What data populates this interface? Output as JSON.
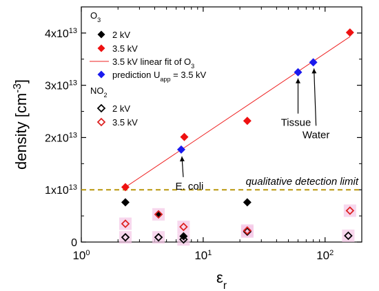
{
  "chart_data": {
    "type": "scatter",
    "x_scale": "log",
    "xlim": [
      1,
      200
    ],
    "ylim": [
      0,
      45000000000000.0
    ],
    "xlabel": "ε",
    "xlabel_sub": "r",
    "ylabel": "density [cm",
    "ylabel_sup": "-3",
    "ylabel_end": "]",
    "x_ticks": [
      {
        "value": 1,
        "base": "10",
        "exp": "0"
      },
      {
        "value": 10,
        "base": "10",
        "exp": "1"
      },
      {
        "value": 100,
        "base": "10",
        "exp": "2"
      }
    ],
    "y_ticks": [
      {
        "value": 0,
        "label": "0",
        "exp": ""
      },
      {
        "value": 10000000000000.0,
        "label": "1x10",
        "exp": "13"
      },
      {
        "value": 20000000000000.0,
        "label": "2x10",
        "exp": "13"
      },
      {
        "value": 30000000000000.0,
        "label": "3x10",
        "exp": "13"
      },
      {
        "value": 40000000000000.0,
        "label": "4x10",
        "exp": "13"
      }
    ],
    "legend": {
      "placement": "top-left",
      "o3_heading": "O",
      "o3_heading_sub": "3",
      "no2_heading": "NO",
      "no2_heading_sub": "2",
      "o3_2kv": "2 kV",
      "o3_35kv": "3.5 kV",
      "fit": "3.5 kV linear fit of O",
      "fit_sub": "3",
      "prediction": "prediction U",
      "prediction_sub": "app",
      "prediction_end": " = 3.5 kV",
      "no2_2kv": "2 kV",
      "no2_35kv": "3.5 kV"
    },
    "colors": {
      "o3_2kv": "#000000",
      "o3_35kv": "#ee1111",
      "fit": "#ee2222",
      "prediction": "#1a1aee",
      "no2_2kv": "#000000",
      "no2_35kv": "#dd2222",
      "no2_halo": "#f4c6e6",
      "detection_limit": "#b8960a"
    },
    "series": [
      {
        "name": "O3 2 kV",
        "marker": "filled-diamond",
        "points": [
          [
            2.3,
            7600000000000.0
          ],
          [
            4.3,
            5300000000000.0
          ],
          [
            6.9,
            1100000000000.0
          ],
          [
            23,
            7600000000000.0
          ]
        ]
      },
      {
        "name": "O3 3.5 kV",
        "marker": "filled-diamond",
        "points": [
          [
            2.3,
            10500000000000.0
          ],
          [
            7.0,
            20100000000000.0
          ],
          [
            23,
            23200000000000.0
          ],
          [
            160,
            40100000000000.0
          ]
        ]
      },
      {
        "name": "prediction 3.5 kV",
        "marker": "filled-diamond",
        "points": [
          [
            6.6,
            17700000000000.0
          ],
          [
            60,
            32500000000000.0
          ],
          [
            80,
            34400000000000.0
          ]
        ]
      },
      {
        "name": "NO2 2 kV",
        "marker": "open-diamond",
        "points": [
          [
            2.3,
            900000000000.0
          ],
          [
            4.3,
            900000000000.0
          ],
          [
            6.9,
            500000000000.0
          ],
          [
            23,
            2000000000000.0
          ],
          [
            155,
            1200000000000.0
          ]
        ]
      },
      {
        "name": "NO2 3.5 kV",
        "marker": "open-diamond",
        "points": [
          [
            2.3,
            3500000000000.0
          ],
          [
            4.3,
            5300000000000.0
          ],
          [
            6.9,
            2900000000000.0
          ],
          [
            23,
            2200000000000.0
          ],
          [
            160,
            6000000000000.0
          ]
        ]
      }
    ],
    "fit_line": {
      "x": [
        2.3,
        160
      ],
      "y": [
        10500000000000.0,
        39300000000000.0
      ]
    },
    "detection_limit": {
      "y": 10000000000000.0,
      "label": "qualitative detection limit"
    },
    "annotations": [
      {
        "text": "E. coli",
        "x": 6.6,
        "y": 17700000000000.0
      },
      {
        "text": "Tissue",
        "x": 60,
        "y": 32500000000000.0
      },
      {
        "text": "Water",
        "x": 80,
        "y": 34400000000000.0
      }
    ]
  }
}
